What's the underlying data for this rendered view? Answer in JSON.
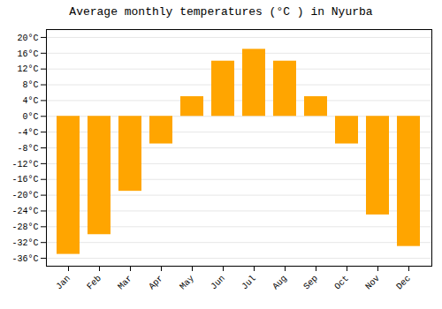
{
  "chart_data": {
    "type": "bar",
    "title": "Average monthly temperatures (°C ) in Nyurba",
    "categories": [
      "Jan",
      "Feb",
      "Mar",
      "Apr",
      "May",
      "Jun",
      "Jul",
      "Aug",
      "Sep",
      "Oct",
      "Nov",
      "Dec"
    ],
    "values": [
      -35,
      -30,
      -19,
      -7,
      5,
      14,
      17,
      14,
      5,
      -7,
      -25,
      -33
    ],
    "color": "#FFA500",
    "ylim": [
      -38,
      22
    ],
    "yticks": [
      {
        "value": -36,
        "label": "-36°C"
      },
      {
        "value": -32,
        "label": "-32°C"
      },
      {
        "value": -28,
        "label": "-28°C"
      },
      {
        "value": -24,
        "label": "-24°C"
      },
      {
        "value": -20,
        "label": "-20°C"
      },
      {
        "value": -16,
        "label": "-16°C"
      },
      {
        "value": -12,
        "label": "-12°C"
      },
      {
        "value": -8,
        "label": "-8°C"
      },
      {
        "value": -4,
        "label": "-4°C"
      },
      {
        "value": 0,
        "label": "0°C"
      },
      {
        "value": 4,
        "label": "4°C"
      },
      {
        "value": 8,
        "label": "8°C"
      },
      {
        "value": 12,
        "label": "12°C"
      },
      {
        "value": 16,
        "label": "16°C"
      },
      {
        "value": 20,
        "label": "20°C"
      }
    ],
    "grid": true
  }
}
